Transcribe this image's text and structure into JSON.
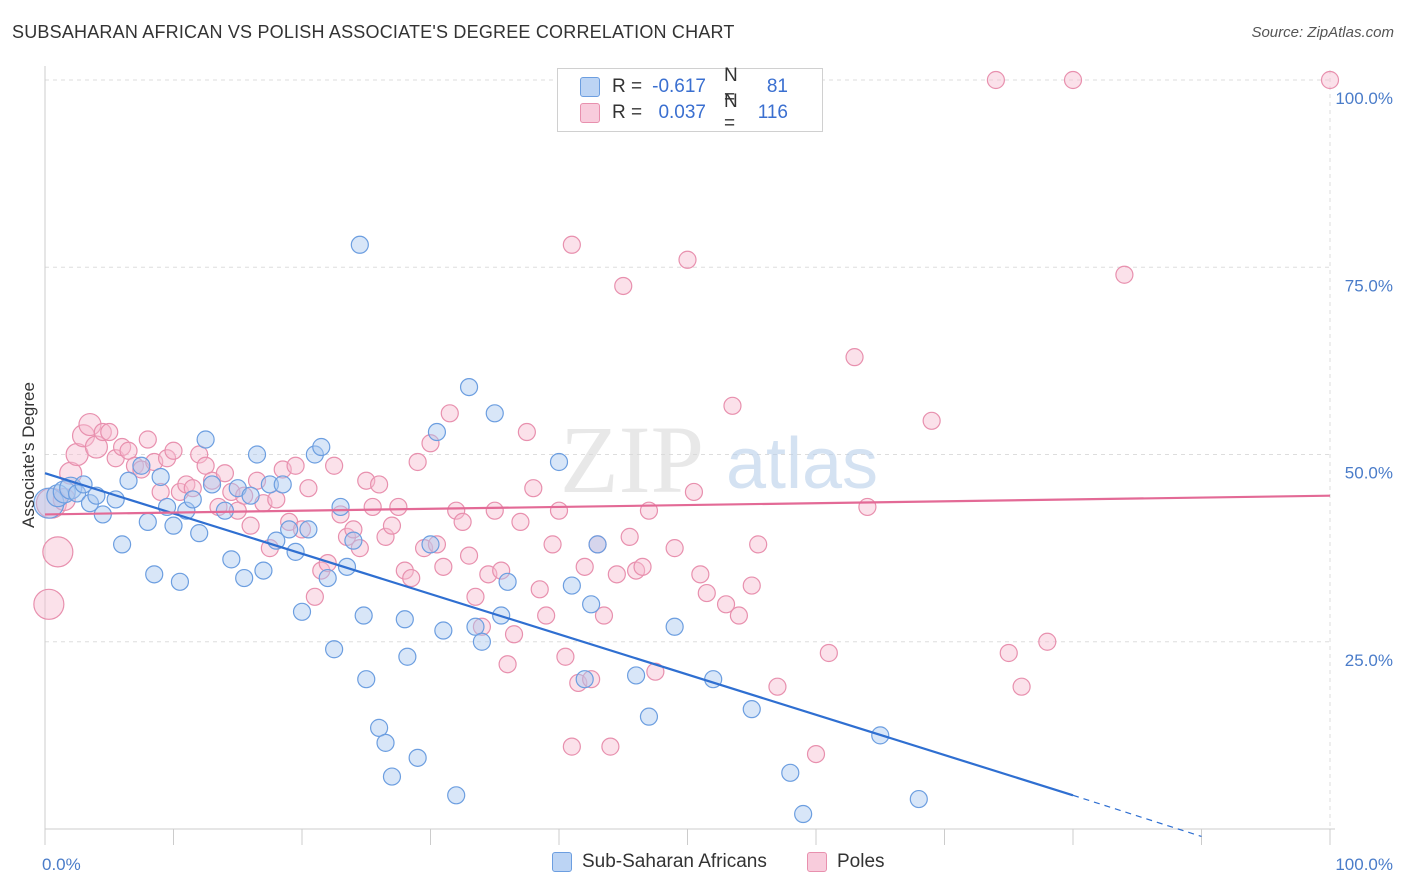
{
  "title": "SUBSAHARAN AFRICAN VS POLISH ASSOCIATE'S DEGREE CORRELATION CHART",
  "source": "Source: ZipAtlas.com",
  "watermark": {
    "zip": "ZIP",
    "atlas": "atlas"
  },
  "legend": {
    "series1": {
      "r_label": "R =",
      "r_value": "-0.617",
      "n_label": "N =",
      "n_value": "81"
    },
    "series2": {
      "r_label": "R =",
      "r_value": "0.037",
      "n_label": "N =",
      "n_value": "116"
    }
  },
  "bottom_legend": {
    "series1": "Sub-Saharan Africans",
    "series2": "Poles"
  },
  "colors": {
    "blue_fill": "#a9c8f0",
    "blue_stroke": "#6c9ee0",
    "blue_line": "#2f6fd1",
    "pink_fill": "#f6bcd0",
    "pink_stroke": "#e890ae",
    "pink_line": "#e36a96",
    "grid": "#dddddd",
    "tick_text": "#4a7cc9"
  },
  "chart_data": {
    "type": "scatter",
    "title": "SUBSAHARAN AFRICAN VS POLISH ASSOCIATE'S DEGREE CORRELATION CHART",
    "xlabel": "",
    "ylabel": "Associate's Degree",
    "xlim": [
      0,
      100
    ],
    "ylim": [
      0,
      100
    ],
    "x_tick_labels": [
      {
        "value": 0,
        "label": "0.0%"
      },
      {
        "value": 100,
        "label": "100.0%"
      }
    ],
    "y_tick_labels": [
      {
        "value": 25,
        "label": "25.0%"
      },
      {
        "value": 50,
        "label": "50.0%"
      },
      {
        "value": 75,
        "label": "75.0%"
      },
      {
        "value": 100,
        "label": "100.0%"
      }
    ],
    "grid": true,
    "legend_position": "top-center",
    "series": [
      {
        "name": "Sub-Saharan Africans",
        "color": "#6c9ee0",
        "trend": {
          "x": [
            0,
            80
          ],
          "y": [
            47.5,
            4.5
          ],
          "dashed_to": {
            "x": 90,
            "y": -1
          }
        },
        "points": [
          [
            0.3,
            43.5,
            3
          ],
          [
            1,
            44.5,
            2
          ],
          [
            1.5,
            45,
            2
          ],
          [
            2,
            45.5,
            2
          ],
          [
            2.5,
            44.8,
            1
          ],
          [
            3,
            46,
            1
          ],
          [
            3.5,
            43.5,
            1
          ],
          [
            4,
            44.5,
            1
          ],
          [
            4.5,
            42,
            1
          ],
          [
            5.5,
            44,
            1
          ],
          [
            6,
            38,
            1
          ],
          [
            6.5,
            46.5,
            1
          ],
          [
            7.5,
            48.5,
            1
          ],
          [
            8,
            41,
            1
          ],
          [
            8.5,
            34,
            1
          ],
          [
            9,
            47,
            1
          ],
          [
            9.5,
            43,
            1
          ],
          [
            10,
            40.5,
            1
          ],
          [
            10.5,
            33,
            1
          ],
          [
            11,
            42.5,
            1
          ],
          [
            11.5,
            44,
            1
          ],
          [
            12,
            39.5,
            1
          ],
          [
            12.5,
            52,
            1
          ],
          [
            13,
            46,
            1
          ],
          [
            14,
            42.5,
            1
          ],
          [
            14.5,
            36,
            1
          ],
          [
            15,
            45.5,
            1
          ],
          [
            15.5,
            33.5,
            1
          ],
          [
            16,
            44.5,
            1
          ],
          [
            16.5,
            50,
            1
          ],
          [
            17,
            34.5,
            1
          ],
          [
            17.5,
            46,
            1
          ],
          [
            18,
            38.5,
            1
          ],
          [
            18.5,
            46,
            1
          ],
          [
            19,
            40,
            1
          ],
          [
            19.5,
            37,
            1
          ],
          [
            20,
            29,
            1
          ],
          [
            20.5,
            40,
            1
          ],
          [
            21,
            50,
            1
          ],
          [
            21.5,
            51,
            1
          ],
          [
            22,
            33.5,
            1
          ],
          [
            22.5,
            24,
            1
          ],
          [
            23,
            43,
            1
          ],
          [
            23.5,
            35,
            1
          ],
          [
            24,
            38.5,
            1
          ],
          [
            24.5,
            78,
            1
          ],
          [
            24.8,
            28.5,
            1
          ],
          [
            25,
            20,
            1
          ],
          [
            26,
            13.5,
            1
          ],
          [
            26.5,
            11.5,
            1
          ],
          [
            27,
            7,
            1
          ],
          [
            28,
            28,
            1
          ],
          [
            28.2,
            23,
            1
          ],
          [
            29,
            9.5,
            1
          ],
          [
            30,
            38,
            1
          ],
          [
            30.5,
            53,
            1
          ],
          [
            31,
            26.5,
            1
          ],
          [
            32,
            4.5,
            1
          ],
          [
            33,
            59,
            1
          ],
          [
            33.5,
            27,
            1
          ],
          [
            34,
            25,
            1
          ],
          [
            35,
            55.5,
            1
          ],
          [
            35.5,
            28.5,
            1
          ],
          [
            36,
            33,
            1
          ],
          [
            40,
            49,
            1
          ],
          [
            41,
            32.5,
            1
          ],
          [
            42,
            20,
            1
          ],
          [
            42.5,
            30,
            1
          ],
          [
            43,
            38,
            1
          ],
          [
            46,
            20.5,
            1
          ],
          [
            47,
            15,
            1
          ],
          [
            49,
            27,
            1
          ],
          [
            52,
            20,
            1
          ],
          [
            55,
            16,
            1
          ],
          [
            58,
            7.5,
            1
          ],
          [
            59,
            2,
            1
          ],
          [
            65,
            12.5,
            1
          ],
          [
            68,
            4,
            1
          ]
        ]
      },
      {
        "name": "Poles",
        "color": "#e890ae",
        "trend": {
          "x": [
            0,
            100
          ],
          "y": [
            42,
            44.5
          ]
        },
        "points": [
          [
            0.3,
            30,
            3
          ],
          [
            0.5,
            43.5,
            3
          ],
          [
            1,
            37,
            3
          ],
          [
            1.5,
            44,
            2
          ],
          [
            2,
            47.5,
            2
          ],
          [
            2.5,
            50,
            2
          ],
          [
            3,
            52.5,
            2
          ],
          [
            3.5,
            54,
            2
          ],
          [
            4,
            51,
            2
          ],
          [
            4.5,
            53,
            1
          ],
          [
            5,
            53,
            1
          ],
          [
            5.5,
            49.5,
            1
          ],
          [
            6,
            51,
            1
          ],
          [
            6.5,
            50.5,
            1
          ],
          [
            7,
            48.5,
            1
          ],
          [
            7.5,
            48,
            1
          ],
          [
            8,
            52,
            1
          ],
          [
            8.5,
            49,
            1
          ],
          [
            9,
            45,
            1
          ],
          [
            9.5,
            49.5,
            1
          ],
          [
            10,
            50.5,
            1
          ],
          [
            10.5,
            45,
            1
          ],
          [
            11,
            46,
            1
          ],
          [
            11.5,
            45.5,
            1
          ],
          [
            12,
            50,
            1
          ],
          [
            12.5,
            48.5,
            1
          ],
          [
            13,
            46.5,
            1
          ],
          [
            13.5,
            43,
            1
          ],
          [
            14,
            47.5,
            1
          ],
          [
            14.5,
            45,
            1
          ],
          [
            15,
            42.5,
            1
          ],
          [
            15.5,
            44.5,
            1
          ],
          [
            16,
            40.5,
            1
          ],
          [
            16.5,
            46.5,
            1
          ],
          [
            17,
            43.5,
            1
          ],
          [
            17.5,
            37.5,
            1
          ],
          [
            18,
            44,
            1
          ],
          [
            18.5,
            48,
            1
          ],
          [
            19,
            41,
            1
          ],
          [
            19.5,
            48.5,
            1
          ],
          [
            20,
            40,
            1
          ],
          [
            20.5,
            45.5,
            1
          ],
          [
            21,
            31,
            1
          ],
          [
            21.5,
            34.5,
            1
          ],
          [
            22,
            35.5,
            1
          ],
          [
            22.5,
            48.5,
            1
          ],
          [
            23,
            42,
            1
          ],
          [
            23.5,
            39,
            1
          ],
          [
            24,
            40,
            1
          ],
          [
            24.5,
            37.5,
            1
          ],
          [
            25,
            46.5,
            1
          ],
          [
            25.5,
            43,
            1
          ],
          [
            26,
            46,
            1
          ],
          [
            26.5,
            39,
            1
          ],
          [
            27,
            40.5,
            1
          ],
          [
            27.5,
            43,
            1
          ],
          [
            28,
            34.5,
            1
          ],
          [
            28.5,
            33.5,
            1
          ],
          [
            29,
            49,
            1
          ],
          [
            29.5,
            37.5,
            1
          ],
          [
            30,
            51.5,
            1
          ],
          [
            30.5,
            38,
            1
          ],
          [
            31,
            35,
            1
          ],
          [
            31.5,
            55.5,
            1
          ],
          [
            32,
            42.5,
            1
          ],
          [
            32.5,
            41,
            1
          ],
          [
            33,
            36.5,
            1
          ],
          [
            33.5,
            31,
            1
          ],
          [
            34,
            27,
            1
          ],
          [
            34.5,
            34,
            1
          ],
          [
            35,
            42.5,
            1
          ],
          [
            35.5,
            34.5,
            1
          ],
          [
            36,
            22,
            1
          ],
          [
            36.5,
            26,
            1
          ],
          [
            37,
            41,
            1
          ],
          [
            37.5,
            53,
            1
          ],
          [
            38,
            45.5,
            1
          ],
          [
            38.5,
            32,
            1
          ],
          [
            39,
            28.5,
            1
          ],
          [
            39.5,
            38,
            1
          ],
          [
            40,
            42.5,
            1
          ],
          [
            40.5,
            23,
            1
          ],
          [
            41,
            11,
            1
          ],
          [
            41.5,
            19.5,
            1
          ],
          [
            42,
            35,
            1
          ],
          [
            42.5,
            20,
            1
          ],
          [
            43,
            38,
            1
          ],
          [
            43.5,
            28.5,
            1
          ],
          [
            44,
            11,
            1
          ],
          [
            44.5,
            34,
            1
          ],
          [
            45,
            72.5,
            1
          ],
          [
            45.5,
            39,
            1
          ],
          [
            46,
            34.5,
            1
          ],
          [
            46.5,
            35,
            1
          ],
          [
            47,
            42.5,
            1
          ],
          [
            47.5,
            21,
            1
          ],
          [
            49,
            37.5,
            1
          ],
          [
            50,
            76,
            1
          ],
          [
            50.5,
            45,
            1
          ],
          [
            51,
            34,
            1
          ],
          [
            51.5,
            31.5,
            1
          ],
          [
            53,
            30,
            1
          ],
          [
            53.5,
            56.5,
            1
          ],
          [
            54,
            28.5,
            1
          ],
          [
            55,
            32.5,
            1
          ],
          [
            55.5,
            38,
            1
          ],
          [
            57,
            19,
            1
          ],
          [
            60,
            10,
            1
          ],
          [
            61,
            23.5,
            1
          ],
          [
            63,
            63,
            1
          ],
          [
            64,
            43,
            1
          ],
          [
            69,
            54.5,
            1
          ],
          [
            75,
            23.5,
            1
          ],
          [
            76,
            19,
            1
          ],
          [
            78,
            25,
            1
          ],
          [
            74,
            100,
            1
          ],
          [
            80,
            100,
            1
          ],
          [
            84,
            74,
            1
          ],
          [
            100,
            100,
            1
          ],
          [
            41,
            78,
            1
          ]
        ]
      }
    ]
  }
}
